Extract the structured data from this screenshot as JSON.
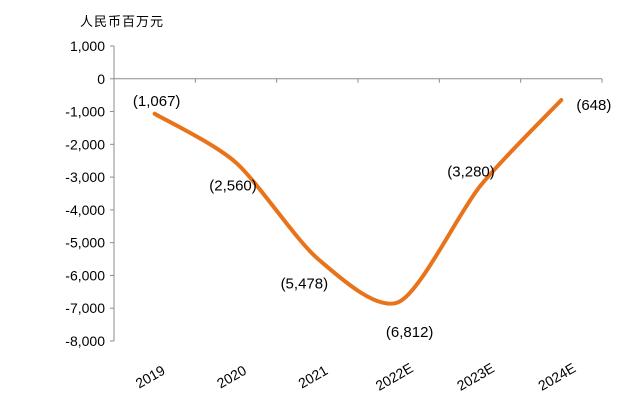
{
  "chart_data": {
    "type": "line",
    "unit_label": "人民币百万元",
    "categories": [
      "2019",
      "2020",
      "2021",
      "2022E",
      "2023E",
      "2024E"
    ],
    "series": [
      {
        "values": [
          -1067,
          -2560,
          -5478,
          -6812,
          -3280,
          -648
        ],
        "data_labels": [
          "(1,067)",
          "(2,560)",
          "(5,478)",
          "(6,812)",
          "(3,280)",
          "(648)"
        ],
        "color": "#E8731A"
      }
    ],
    "y_ticks": [
      1000,
      0,
      -1000,
      -2000,
      -3000,
      -4000,
      -5000,
      -6000,
      -7000,
      -8000
    ],
    "y_tick_labels": [
      "1,000",
      "0",
      "-1,000",
      "-2,000",
      "-3,000",
      "-4,000",
      "-5,000",
      "-6,000",
      "-7,000",
      "-8,000"
    ],
    "ylim": [
      -8000,
      1000
    ],
    "smooth": true,
    "grid": false,
    "legend": "none"
  }
}
